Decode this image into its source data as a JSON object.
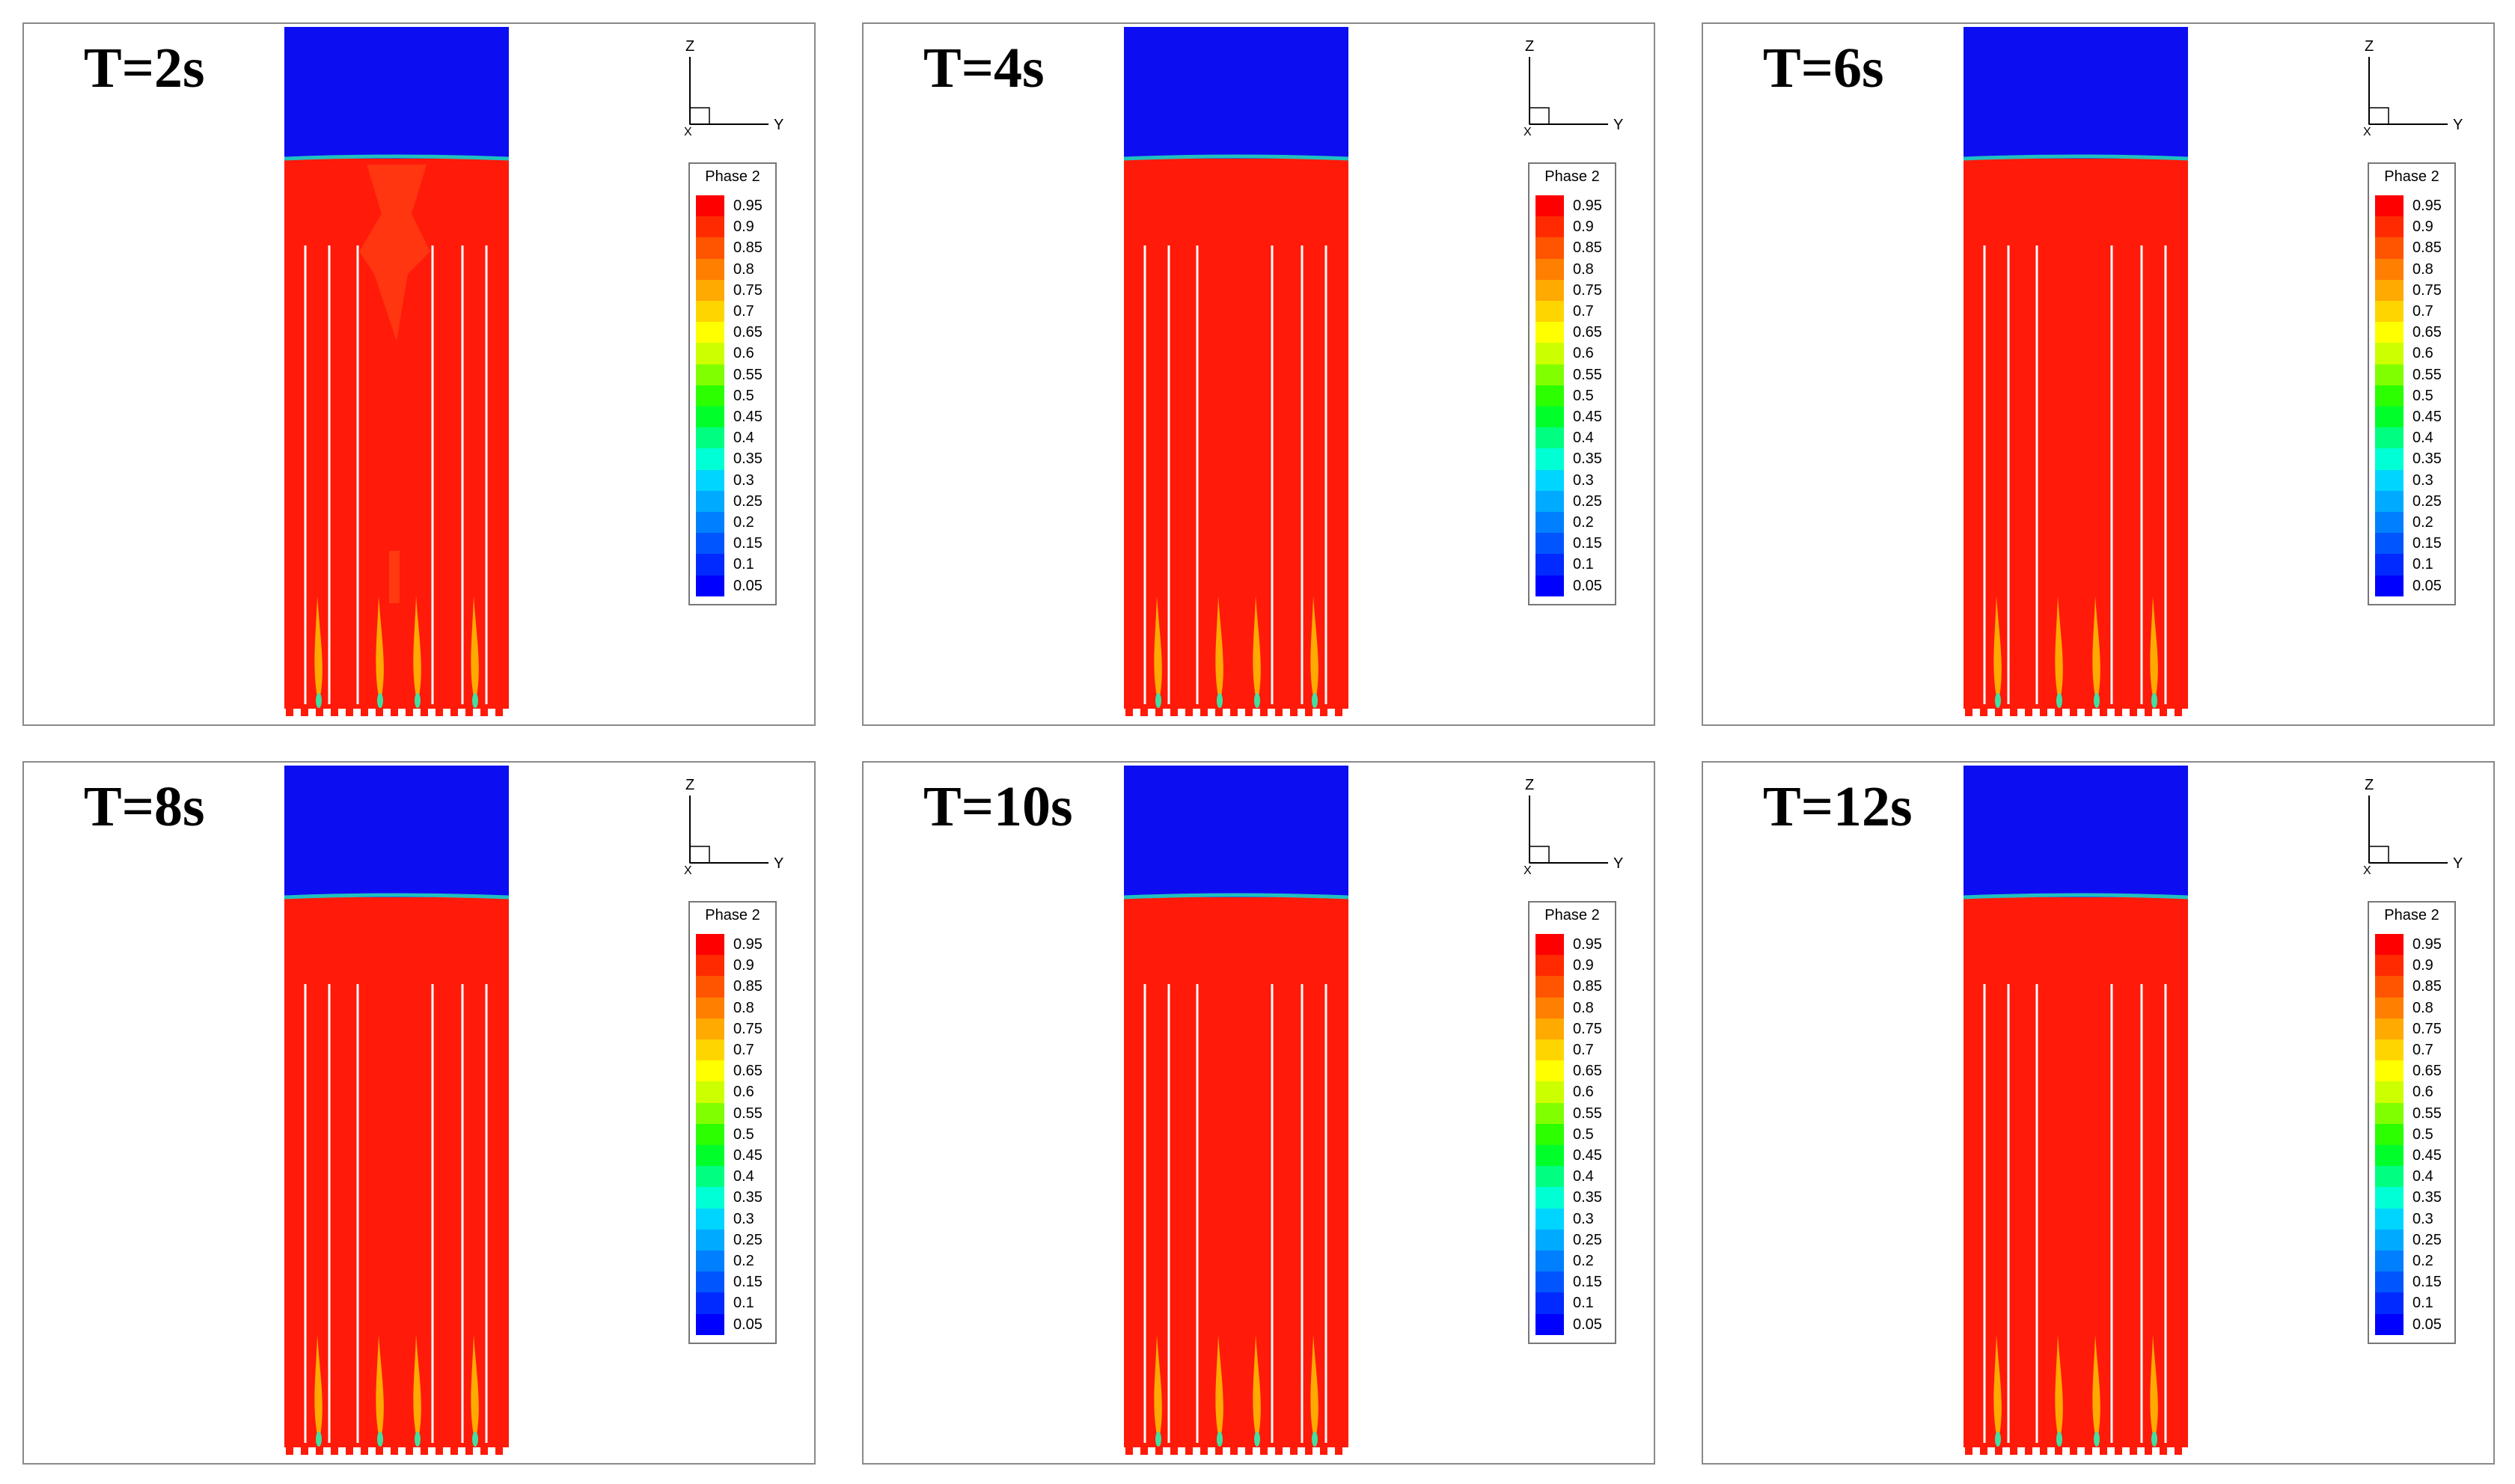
{
  "figure": {
    "panels": [
      {
        "time_label": "T=2s"
      },
      {
        "time_label": "T=4s"
      },
      {
        "time_label": "T=6s"
      },
      {
        "time_label": "T=8s"
      },
      {
        "time_label": "T=10s"
      },
      {
        "time_label": "T=12s"
      }
    ],
    "axis_labels": {
      "z": "Z",
      "y": "Y",
      "x": "X"
    },
    "legend": {
      "title": "Phase 2",
      "values": [
        "0.95",
        "0.9",
        "0.85",
        "0.8",
        "0.75",
        "0.7",
        "0.65",
        "0.6",
        "0.55",
        "0.5",
        "0.45",
        "0.4",
        "0.35",
        "0.3",
        "0.25",
        "0.2",
        "0.15",
        "0.1",
        "0.05"
      ],
      "colors": [
        "#ff0000",
        "#ff2a00",
        "#ff5500",
        "#ff8000",
        "#ffaa00",
        "#ffd500",
        "#ffff00",
        "#ccff00",
        "#80ff00",
        "#2bff00",
        "#00ff2a",
        "#00ff80",
        "#00ffd5",
        "#00d5ff",
        "#00aaff",
        "#0080ff",
        "#0055ff",
        "#002aff",
        "#0000ff"
      ]
    },
    "colors": {
      "liquid": "#ff1a0a",
      "gas": "#0d0df2",
      "interface": "#20c0c0",
      "plume": "#ffc400",
      "wall": "#ffffff"
    }
  }
}
